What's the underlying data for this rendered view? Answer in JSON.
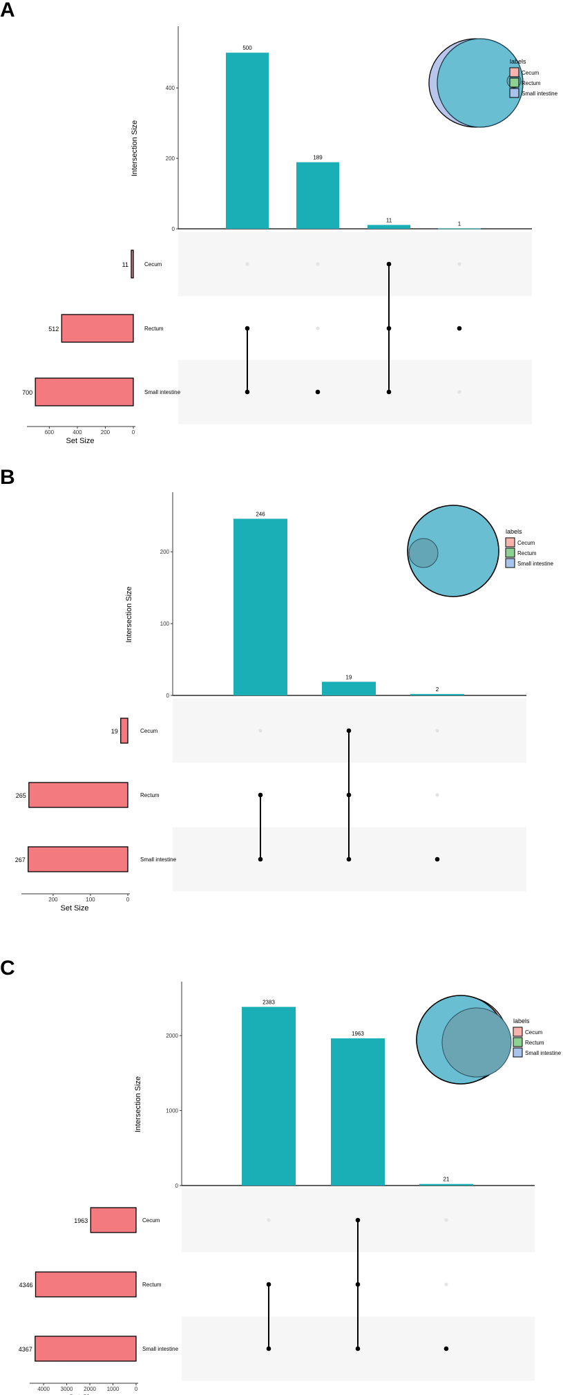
{
  "figure": {
    "colors": {
      "intersection_bar": "#1AAFB7",
      "set_bar": "#F37B80",
      "band": "#F6F6F6",
      "dot_active": "#000000",
      "dot_inactive": "#E4E4E4",
      "venn_blue": "#6ABED2",
      "venn_blue_bg": "#B7C6EA",
      "legend_cecum": "#F9B3AE",
      "legend_rectum": "#8ED293",
      "legend_small_intestine": "#A9C4EA"
    },
    "legend": {
      "title": "labels",
      "items": [
        "Cecum",
        "Rectum",
        "Small intestine"
      ]
    },
    "y_axis_title": "Intersection Size",
    "x_axis_title": "Set Size"
  },
  "chart_data": [
    {
      "panel": "A",
      "type": "bar",
      "sets": [
        "Cecum",
        "Rectum",
        "Small intestine"
      ],
      "set_sizes": [
        11,
        512,
        700
      ],
      "set_size_ticks": [
        600,
        400,
        200,
        0
      ],
      "set_size_max": 760,
      "intersections": [
        {
          "members": [
            "Rectum",
            "Small intestine"
          ],
          "value": 500
        },
        {
          "members": [
            "Small intestine"
          ],
          "value": 189
        },
        {
          "members": [
            "Cecum",
            "Rectum",
            "Small intestine"
          ],
          "value": 11
        },
        {
          "members": [
            "Rectum"
          ],
          "value": 1
        }
      ],
      "y_ticks": [
        0,
        200,
        400
      ],
      "ylim": [
        0,
        575
      ],
      "venn": "big-ellipse-with-small"
    },
    {
      "panel": "B",
      "type": "bar",
      "sets": [
        "Cecum",
        "Rectum",
        "Small intestine"
      ],
      "set_sizes": [
        19,
        265,
        267
      ],
      "set_size_ticks": [
        200,
        100,
        0
      ],
      "set_size_max": 285,
      "intersections": [
        {
          "members": [
            "Rectum",
            "Small intestine"
          ],
          "value": 246
        },
        {
          "members": [
            "Cecum",
            "Rectum",
            "Small intestine"
          ],
          "value": 19
        },
        {
          "members": [
            "Small intestine"
          ],
          "value": 2
        }
      ],
      "y_ticks": [
        0,
        100,
        200
      ],
      "ylim": [
        0,
        283
      ],
      "venn": "circle-with-small-left"
    },
    {
      "panel": "C",
      "type": "bar",
      "sets": [
        "Cecum",
        "Rectum",
        "Small intestine"
      ],
      "set_sizes": [
        1963,
        4346,
        4367
      ],
      "set_size_ticks": [
        4000,
        3000,
        2000,
        1000,
        0
      ],
      "set_size_max": 4600,
      "intersections": [
        {
          "members": [
            "Rectum",
            "Small intestine"
          ],
          "value": 2383
        },
        {
          "members": [
            "Cecum",
            "Rectum",
            "Small intestine"
          ],
          "value": 1963
        },
        {
          "members": [
            "Small intestine"
          ],
          "value": 21
        }
      ],
      "y_ticks": [
        0,
        1000,
        2000
      ],
      "ylim": [
        0,
        2720
      ],
      "venn": "circle-with-large-right"
    }
  ]
}
